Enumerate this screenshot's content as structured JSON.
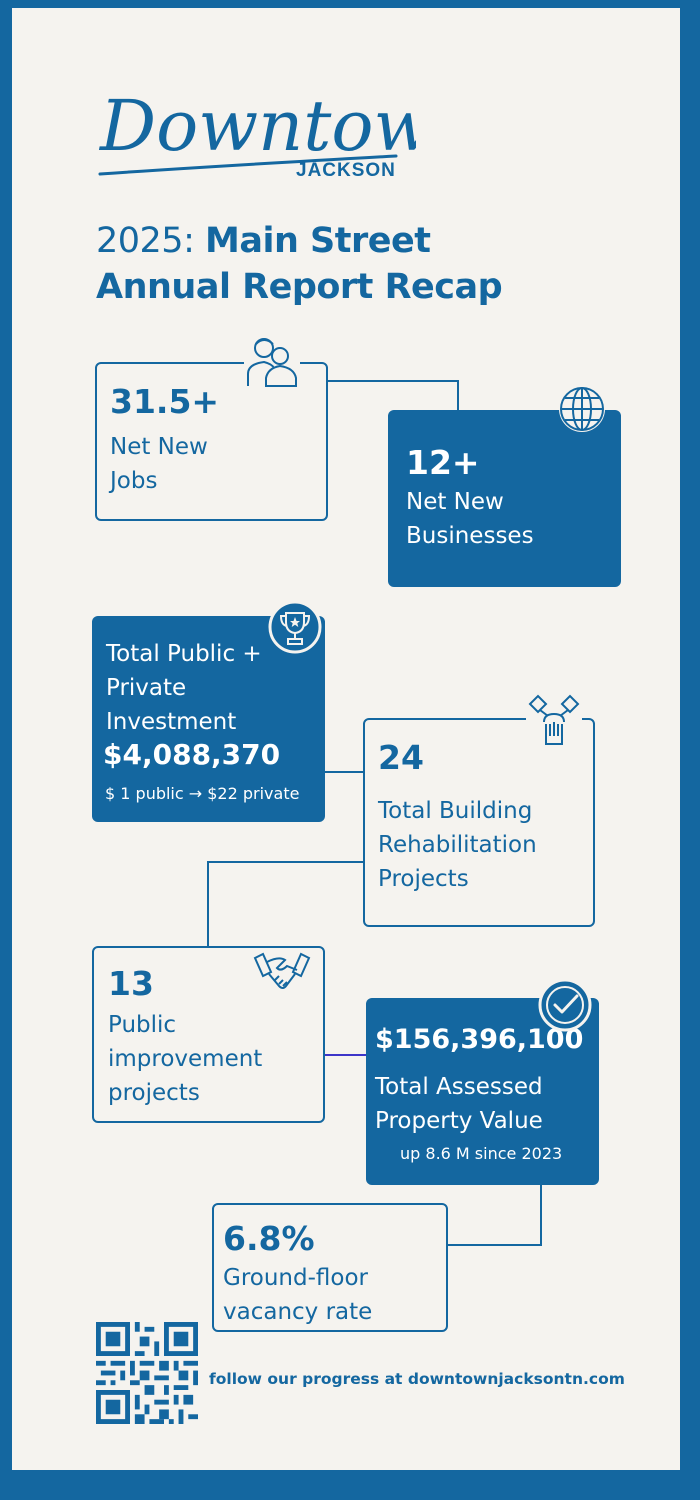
{
  "brand": {
    "script": "Downtown",
    "sub": "JACKSON"
  },
  "title": {
    "year": "2025:",
    "line1_bold": "Main Street",
    "line2": "Annual Report Recap"
  },
  "colors": {
    "primary": "#1467a0",
    "background": "#f5f3ef",
    "accent_line": "#3d35c9"
  },
  "cards": {
    "jobs": {
      "value": "31.5+",
      "label": "Net New\nJobs",
      "icon": "people-icon"
    },
    "businesses": {
      "value": "12+",
      "label": "Net New\nBusinesses",
      "icon": "globe-icon"
    },
    "investment": {
      "label": "Total Public +\nPrivate\nInvestment",
      "value": "$4,088,370",
      "note": "$ 1 public → $22 private",
      "icon": "trophy-icon"
    },
    "rehab": {
      "value": "24",
      "label": "Total Building\nRehabilitation\nProjects",
      "icon": "teamwork-hands-icon"
    },
    "improvement": {
      "value": "13",
      "label": "Public\nimprovement\nprojects",
      "icon": "handshake-icon"
    },
    "property": {
      "value": "$156,396,100",
      "label": "Total Assessed\nProperty Value",
      "note": "up 8.6 M since 2023",
      "icon": "checkmark-icon"
    },
    "vacancy": {
      "value": "6.8%",
      "label": "Ground-floor\nvacancy rate"
    }
  },
  "footer": {
    "text": "follow our progress at downtownjacksontn.com",
    "qr_icon": "qr-code-icon"
  }
}
